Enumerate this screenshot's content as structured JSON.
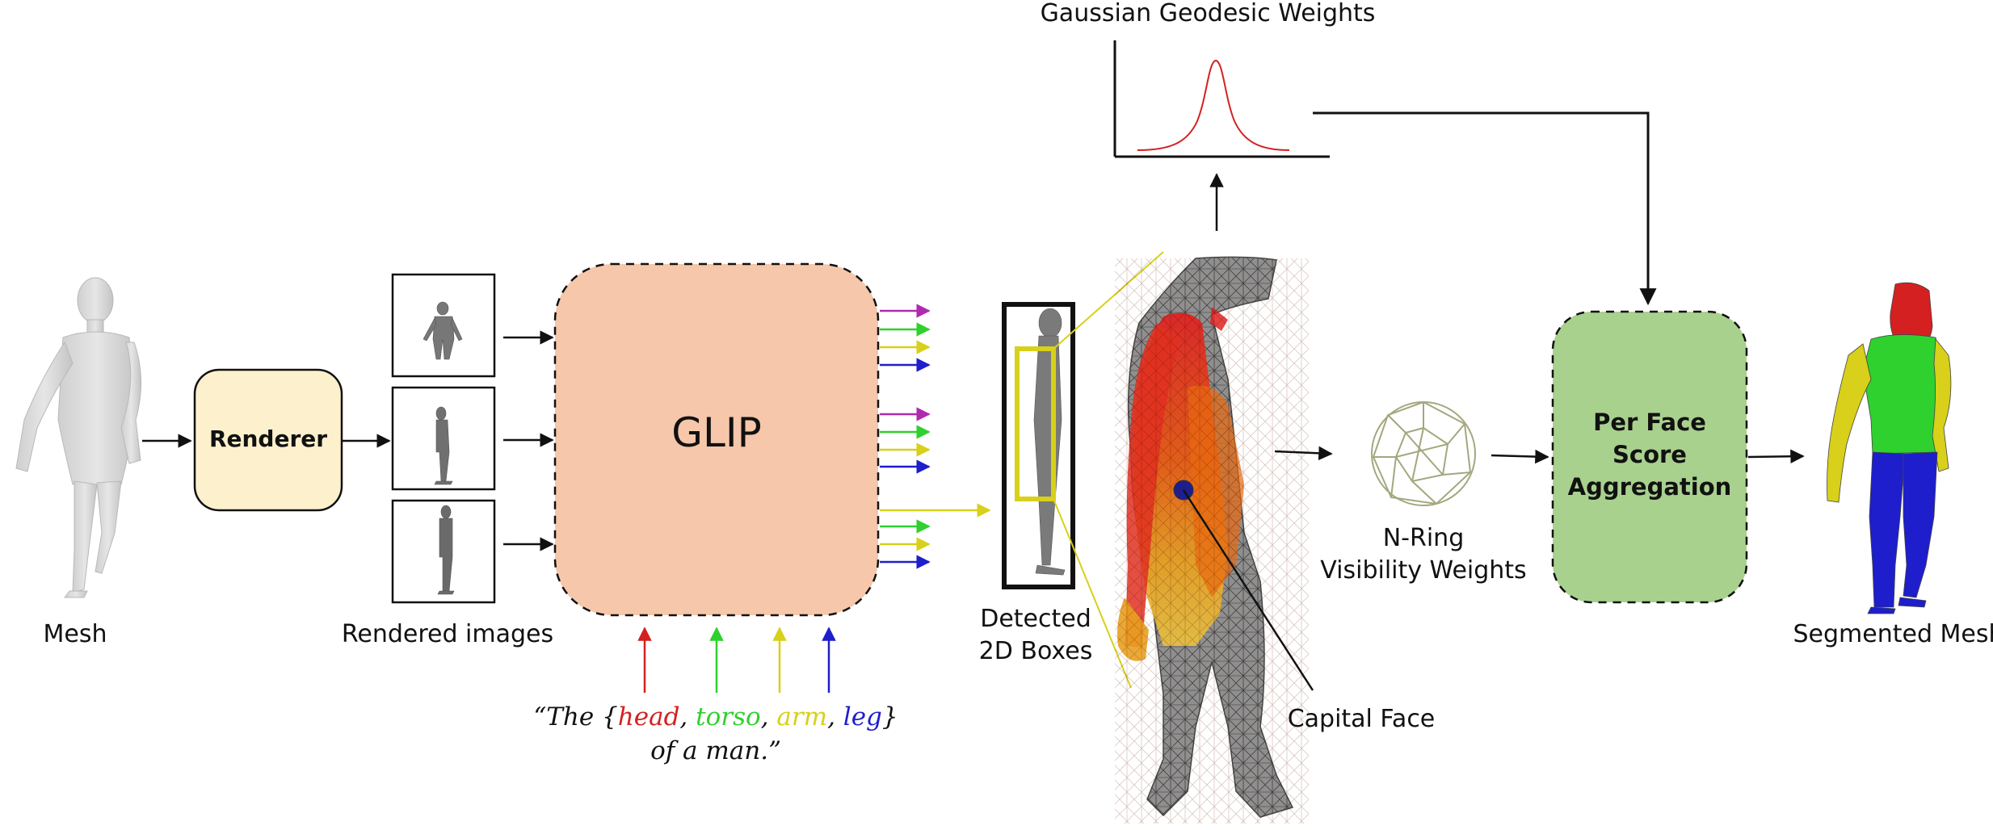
{
  "diagram": {
    "inputs": {
      "mesh_label": "Mesh",
      "renderer_label": "Renderer",
      "rendered_images_label": "Rendered images"
    },
    "glip": {
      "label": "GLIP"
    },
    "prompt": {
      "open": "“The {",
      "parts": [
        {
          "word": "head",
          "color": "#d42020"
        },
        {
          "word": "torso",
          "color": "#2ed12e"
        },
        {
          "word": "arm",
          "color": "#d8d01a"
        },
        {
          "word": "leg",
          "color": "#1e1ecc"
        }
      ],
      "sep": ", ",
      "close": "}",
      "line2": "of a man.”"
    },
    "detection": {
      "label_line1": "Detected",
      "label_line2": "2D Boxes"
    },
    "gaussian": {
      "label": "Gaussian Geodesic Weights"
    },
    "capital_face": {
      "label": "Capital Face"
    },
    "visibility": {
      "label_line1": "N-Ring",
      "label_line2": "Visibility Weights"
    },
    "aggregation": {
      "line1": "Per Face",
      "line2": "Score",
      "line3": "Aggregation"
    },
    "output": {
      "label": "Segmented Mesh"
    },
    "colors": {
      "head": "#d42020",
      "torso": "#2ed12e",
      "arm": "#d8d01a",
      "leg": "#1e1ecc",
      "extra": "#b02ab0",
      "renderer_fill": "#fdf0cc",
      "glip_fill": "#f6c7aa",
      "aggregation_fill": "#a9d18e",
      "detection_box": "#d8d01a"
    }
  }
}
